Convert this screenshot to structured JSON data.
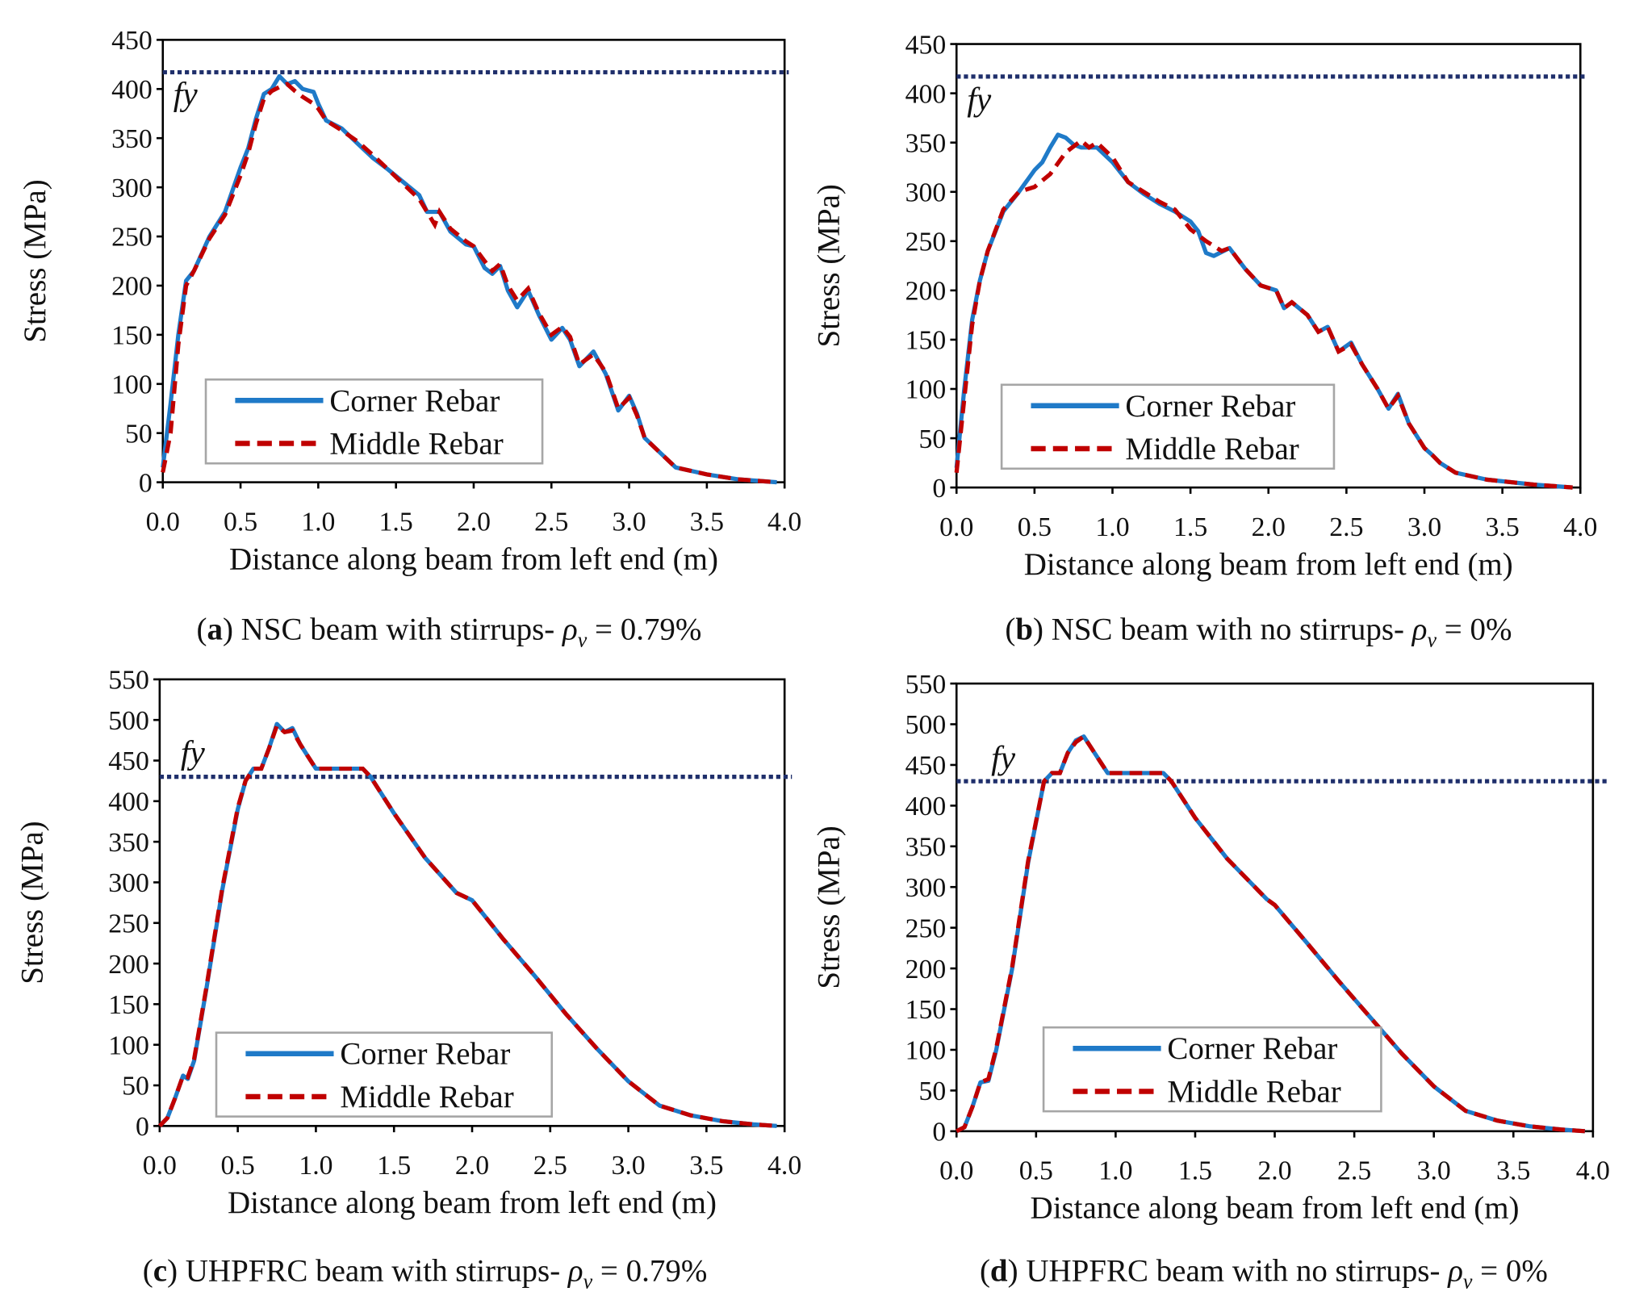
{
  "colors": {
    "corner": "#1f7ac8",
    "middle": "#c00000",
    "fy": "#1f2f6b",
    "axis": "#000000",
    "legend_border": "#a6a6a6"
  },
  "chart_data": [
    {
      "type": "line",
      "panel": "a",
      "xlabel": "Distance along beam from left end (m)",
      "ylabel": "Stress (MPa)",
      "xlim": [
        0,
        4
      ],
      "ylim": [
        0,
        450
      ],
      "xticks": [
        "0.0",
        "0.5",
        "1.0",
        "1.5",
        "2.0",
        "2.5",
        "3.0",
        "3.5",
        "4.0"
      ],
      "yticks": [
        "0",
        "50",
        "100",
        "150",
        "200",
        "250",
        "300",
        "350",
        "400",
        "450"
      ],
      "fy": {
        "label": "fy",
        "value": 417
      },
      "legend": {
        "placement": "lower-left",
        "entries": [
          "Corner Rebar",
          "Middle Rebar"
        ]
      },
      "caption": {
        "letter": "a",
        "text": " NSC beam with stirrups- ",
        "symbol": "ρ",
        "sub": "v",
        "value": " = 0.79%"
      },
      "series": [
        {
          "name": "Corner Rebar",
          "x": [
            0,
            0.05,
            0.1,
            0.15,
            0.2,
            0.3,
            0.4,
            0.5,
            0.55,
            0.6,
            0.65,
            0.7,
            0.75,
            0.8,
            0.85,
            0.9,
            0.97,
            1.0,
            1.05,
            1.15,
            1.25,
            1.35,
            1.45,
            1.55,
            1.65,
            1.7,
            1.78,
            1.85,
            1.95,
            2.0,
            2.07,
            2.12,
            2.17,
            2.22,
            2.28,
            2.35,
            2.42,
            2.5,
            2.57,
            2.62,
            2.68,
            2.77,
            2.85,
            2.93,
            3.0,
            3.05,
            3.1,
            3.2,
            3.3,
            3.5,
            3.7,
            3.95
          ],
          "y": [
            15,
            80,
            150,
            205,
            215,
            250,
            275,
            320,
            340,
            370,
            395,
            400,
            413,
            405,
            408,
            400,
            397,
            385,
            368,
            360,
            345,
            330,
            318,
            305,
            292,
            275,
            275,
            255,
            242,
            240,
            218,
            212,
            220,
            195,
            178,
            195,
            170,
            145,
            157,
            145,
            118,
            133,
            110,
            73,
            88,
            70,
            45,
            30,
            15,
            8,
            3,
            0
          ]
        },
        {
          "name": "Middle Rebar",
          "x": [
            0,
            0.05,
            0.1,
            0.15,
            0.2,
            0.3,
            0.4,
            0.5,
            0.55,
            0.6,
            0.65,
            0.7,
            0.75,
            0.8,
            0.85,
            0.9,
            0.97,
            1.0,
            1.05,
            1.15,
            1.25,
            1.35,
            1.45,
            1.55,
            1.65,
            1.75,
            1.78,
            1.85,
            1.95,
            2.0,
            2.07,
            2.12,
            2.17,
            2.22,
            2.28,
            2.35,
            2.42,
            2.5,
            2.57,
            2.62,
            2.68,
            2.77,
            2.85,
            2.93,
            3.0,
            3.05,
            3.1,
            3.2,
            3.3,
            3.5,
            3.7,
            3.95
          ],
          "y": [
            10,
            50,
            140,
            200,
            215,
            248,
            272,
            312,
            335,
            365,
            390,
            398,
            402,
            405,
            398,
            392,
            385,
            380,
            368,
            358,
            347,
            333,
            318,
            303,
            288,
            262,
            275,
            258,
            245,
            240,
            225,
            215,
            222,
            200,
            185,
            197,
            172,
            150,
            158,
            148,
            120,
            130,
            112,
            75,
            86,
            68,
            45,
            30,
            15,
            8,
            3,
            0
          ]
        }
      ]
    },
    {
      "type": "line",
      "panel": "b",
      "xlabel": "Distance along beam from left end (m)",
      "ylabel": "Stress (MPa)",
      "xlim": [
        0,
        4
      ],
      "ylim": [
        0,
        450
      ],
      "xticks": [
        "0.0",
        "0.5",
        "1.0",
        "1.5",
        "2.0",
        "2.5",
        "3.0",
        "3.5",
        "4.0"
      ],
      "yticks": [
        "0",
        "50",
        "100",
        "150",
        "200",
        "250",
        "300",
        "350",
        "400",
        "450"
      ],
      "fy": {
        "label": "fy",
        "value": 417
      },
      "legend": {
        "placement": "lower-left",
        "entries": [
          "Corner Rebar",
          "Middle Rebar"
        ]
      },
      "caption": {
        "letter": "b",
        "text": " NSC beam with no stirrups- ",
        "symbol": "ρ",
        "sub": "v",
        "value": " = 0%"
      },
      "series": [
        {
          "name": "Corner Rebar",
          "x": [
            0,
            0.05,
            0.1,
            0.15,
            0.2,
            0.3,
            0.4,
            0.5,
            0.55,
            0.6,
            0.65,
            0.7,
            0.75,
            0.8,
            0.9,
            1.0,
            1.1,
            1.2,
            1.3,
            1.4,
            1.5,
            1.55,
            1.6,
            1.65,
            1.75,
            1.85,
            1.95,
            2.05,
            2.1,
            2.15,
            2.25,
            2.32,
            2.38,
            2.45,
            2.53,
            2.6,
            2.7,
            2.77,
            2.83,
            2.9,
            3.0,
            3.05,
            3.1,
            3.2,
            3.4,
            3.7,
            3.95
          ],
          "y": [
            20,
            100,
            170,
            210,
            240,
            280,
            300,
            322,
            330,
            345,
            358,
            355,
            348,
            345,
            345,
            330,
            310,
            298,
            288,
            280,
            270,
            260,
            238,
            235,
            243,
            222,
            205,
            200,
            182,
            188,
            175,
            158,
            163,
            138,
            147,
            125,
            100,
            80,
            95,
            65,
            40,
            33,
            25,
            15,
            8,
            3,
            0
          ]
        },
        {
          "name": "Middle Rebar",
          "x": [
            0,
            0.05,
            0.1,
            0.15,
            0.2,
            0.3,
            0.4,
            0.5,
            0.6,
            0.7,
            0.8,
            0.85,
            0.9,
            1.0,
            1.1,
            1.2,
            1.3,
            1.4,
            1.5,
            1.6,
            1.7,
            1.75,
            1.85,
            1.95,
            2.05,
            2.1,
            2.15,
            2.25,
            2.32,
            2.38,
            2.45,
            2.53,
            2.6,
            2.7,
            2.77,
            2.83,
            2.9,
            3.0,
            3.05,
            3.1,
            3.2,
            3.4,
            3.7,
            3.95
          ],
          "y": [
            15,
            90,
            165,
            210,
            240,
            282,
            300,
            305,
            318,
            340,
            352,
            345,
            350,
            335,
            310,
            300,
            290,
            282,
            262,
            250,
            240,
            243,
            222,
            205,
            200,
            182,
            188,
            175,
            158,
            163,
            138,
            145,
            125,
            100,
            80,
            93,
            65,
            40,
            33,
            25,
            15,
            8,
            3,
            0
          ]
        }
      ]
    },
    {
      "type": "line",
      "panel": "c",
      "xlabel": "Distance along beam from left end (m)",
      "ylabel": "Stress (MPa)",
      "xlim": [
        0,
        4
      ],
      "ylim": [
        0,
        550
      ],
      "xticks": [
        "0.0",
        "0.5",
        "1.0",
        "1.5",
        "2.0",
        "2.5",
        "3.0",
        "3.5",
        "4.0"
      ],
      "yticks": [
        "0",
        "50",
        "100",
        "150",
        "200",
        "250",
        "300",
        "350",
        "400",
        "450",
        "500",
        "550"
      ],
      "fy": {
        "label": "fy",
        "value": 430
      },
      "legend": {
        "placement": "lower-left",
        "entries": [
          "Corner Rebar",
          "Middle Rebar"
        ]
      },
      "caption": {
        "letter": "c",
        "text": " UHPFRC beam with stirrups- ",
        "symbol": "ρ",
        "sub": "v",
        "value": " = 0.79%"
      },
      "series": [
        {
          "name": "Corner Rebar",
          "x": [
            0,
            0.05,
            0.1,
            0.15,
            0.18,
            0.22,
            0.3,
            0.4,
            0.5,
            0.55,
            0.6,
            0.65,
            0.7,
            0.75,
            0.8,
            0.85,
            0.9,
            0.95,
            1.0,
            1.1,
            1.3,
            1.35,
            1.5,
            1.7,
            1.9,
            2.0,
            2.2,
            2.4,
            2.6,
            2.8,
            3.0,
            3.2,
            3.4,
            3.6,
            3.8,
            3.95
          ],
          "y": [
            0,
            10,
            35,
            62,
            58,
            80,
            170,
            290,
            390,
            425,
            440,
            440,
            465,
            495,
            485,
            490,
            470,
            455,
            440,
            440,
            440,
            430,
            385,
            330,
            287,
            278,
            230,
            185,
            138,
            95,
            55,
            25,
            13,
            6,
            2,
            0
          ]
        },
        {
          "name": "Middle Rebar",
          "x": [
            0,
            0.05,
            0.1,
            0.15,
            0.18,
            0.22,
            0.3,
            0.4,
            0.5,
            0.55,
            0.6,
            0.65,
            0.7,
            0.75,
            0.8,
            0.85,
            0.9,
            0.95,
            1.0,
            1.1,
            1.3,
            1.35,
            1.5,
            1.7,
            1.9,
            2.0,
            2.2,
            2.4,
            2.6,
            2.8,
            3.0,
            3.2,
            3.4,
            3.6,
            3.8,
            3.95
          ],
          "y": [
            0,
            10,
            35,
            62,
            60,
            82,
            172,
            292,
            392,
            425,
            440,
            440,
            465,
            493,
            485,
            487,
            470,
            455,
            440,
            440,
            440,
            430,
            385,
            330,
            287,
            278,
            230,
            185,
            138,
            95,
            55,
            25,
            13,
            6,
            2,
            0
          ]
        }
      ]
    },
    {
      "type": "line",
      "panel": "d",
      "xlabel": "Distance along beam from left end (m)",
      "ylabel": "Stress (MPa)",
      "xlim": [
        0,
        4
      ],
      "ylim": [
        0,
        550
      ],
      "xticks": [
        "0.0",
        "0.5",
        "1.0",
        "1.5",
        "2.0",
        "2.5",
        "3.0",
        "3.5",
        "4.0"
      ],
      "yticks": [
        "0",
        "50",
        "100",
        "150",
        "200",
        "250",
        "300",
        "350",
        "400",
        "450",
        "500",
        "550"
      ],
      "fy": {
        "label": "fy",
        "value": 430
      },
      "legend": {
        "placement": "lower-left",
        "entries": [
          "Corner Rebar",
          "Middle Rebar"
        ]
      },
      "caption": {
        "letter": "d",
        "text": " UHPFRC beam with no stirrups- ",
        "symbol": "ρ",
        "sub": "v",
        "value": " = 0%"
      },
      "series": [
        {
          "name": "Corner Rebar",
          "x": [
            0,
            0.05,
            0.1,
            0.15,
            0.2,
            0.25,
            0.35,
            0.45,
            0.55,
            0.6,
            0.65,
            0.7,
            0.75,
            0.8,
            0.85,
            0.9,
            0.95,
            1.3,
            1.35,
            1.5,
            1.7,
            1.95,
            2.0,
            2.2,
            2.4,
            2.6,
            2.8,
            3.0,
            3.2,
            3.4,
            3.6,
            3.8,
            3.95
          ],
          "y": [
            0,
            5,
            30,
            60,
            62,
            100,
            200,
            330,
            430,
            440,
            440,
            465,
            480,
            485,
            470,
            455,
            440,
            440,
            430,
            385,
            335,
            285,
            278,
            232,
            185,
            140,
            95,
            55,
            25,
            13,
            6,
            2,
            0
          ]
        },
        {
          "name": "Middle Rebar",
          "x": [
            0,
            0.05,
            0.1,
            0.15,
            0.2,
            0.25,
            0.35,
            0.45,
            0.55,
            0.6,
            0.65,
            0.7,
            0.75,
            0.8,
            0.85,
            0.9,
            0.95,
            1.3,
            1.35,
            1.5,
            1.7,
            1.95,
            2.0,
            2.2,
            2.4,
            2.6,
            2.8,
            3.0,
            3.2,
            3.4,
            3.6,
            3.8,
            3.95
          ],
          "y": [
            0,
            5,
            30,
            60,
            64,
            102,
            202,
            332,
            430,
            440,
            440,
            465,
            478,
            485,
            470,
            455,
            440,
            440,
            430,
            385,
            335,
            285,
            278,
            232,
            185,
            140,
            95,
            55,
            25,
            13,
            6,
            2,
            0
          ]
        }
      ]
    }
  ]
}
